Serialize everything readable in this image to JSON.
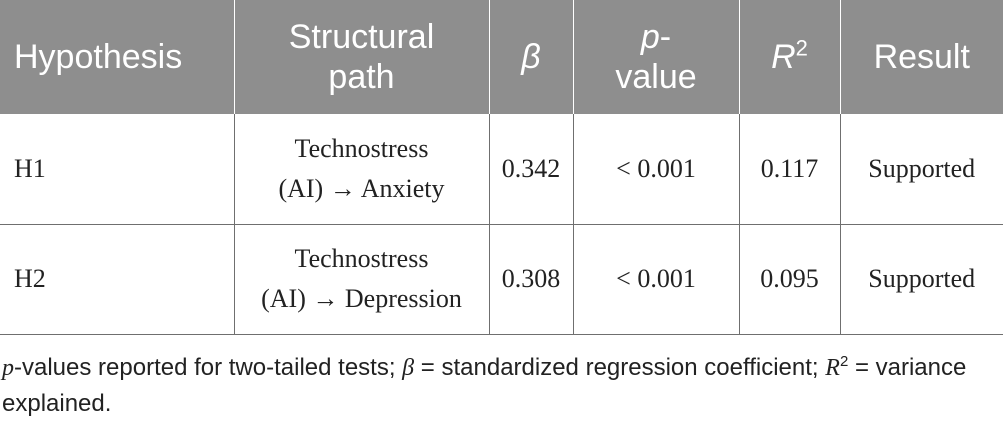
{
  "table": {
    "headers": {
      "hypothesis": "Hypothesis",
      "path_line1": "Structural",
      "path_line2": "path",
      "beta": "β",
      "p_line1": "p",
      "p_hyphen": "-",
      "p_line2": "value",
      "r_letter": "R",
      "r_sup": "2",
      "result": "Result"
    },
    "rows": [
      {
        "hypothesis": "H1",
        "path_line1": "Technostress",
        "path_line2": "(AI) → Anxiety",
        "beta": "0.342",
        "p_value": "< 0.001",
        "r2": "0.117",
        "result": "Supported"
      },
      {
        "hypothesis": "H2",
        "path_line1": "Technostress",
        "path_line2": "(AI) → Depression",
        "beta": "0.308",
        "p_value": "< 0.001",
        "r2": "0.095",
        "result": "Supported"
      }
    ]
  },
  "footnote": {
    "p_italic": "p",
    "part1": "-values reported for two-tailed tests; ",
    "beta_italic": "β",
    "part2": " = standardized regression coefficient; ",
    "r_italic": "R",
    "r_sup": "2",
    "part3": " = variance explained."
  },
  "colors": {
    "header_bg": "#8e8e8e",
    "header_text": "#ffffff",
    "grid": "#6f6f6f",
    "body_text": "#222222"
  }
}
